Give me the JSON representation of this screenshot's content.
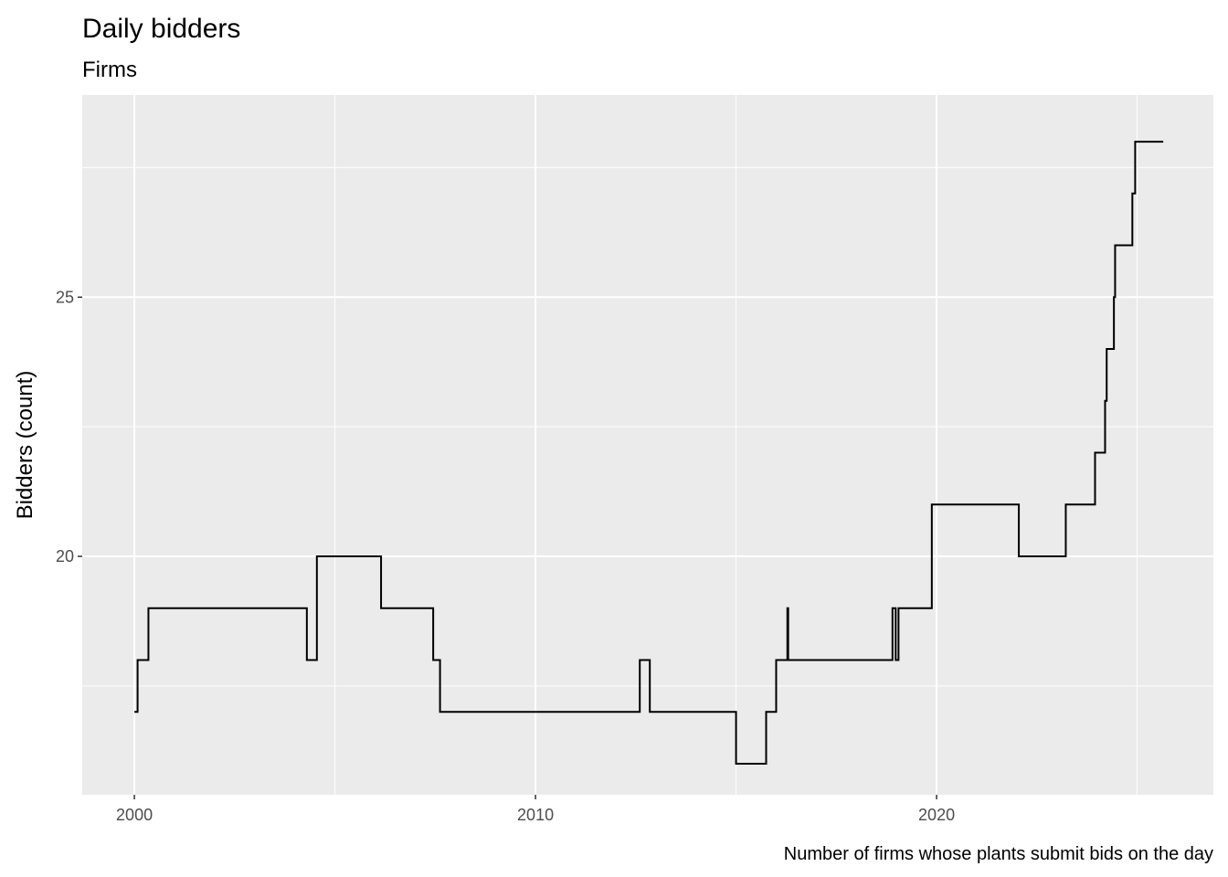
{
  "chart_data": {
    "type": "line",
    "step": true,
    "title": "Daily bidders",
    "subtitle": "Firms",
    "xlabel": "",
    "ylabel": "Bidders (count)",
    "caption": "Number of firms whose plants submit bids on the day",
    "xlim": [
      1998.7,
      2026.9
    ],
    "ylim": [
      15.4,
      28.9
    ],
    "x_ticks": [
      2000,
      2010,
      2020
    ],
    "y_ticks": [
      20,
      25
    ],
    "grid": true,
    "legend": "none",
    "series": [
      {
        "points": [
          [
            2000.0,
            17
          ],
          [
            2000.08,
            18
          ],
          [
            2000.35,
            19
          ],
          [
            2004.3,
            18
          ],
          [
            2004.55,
            20
          ],
          [
            2006.15,
            19
          ],
          [
            2007.45,
            18
          ],
          [
            2007.62,
            17
          ],
          [
            2012.6,
            18
          ],
          [
            2012.85,
            17
          ],
          [
            2015.0,
            16
          ],
          [
            2015.75,
            17
          ],
          [
            2016.0,
            18
          ],
          [
            2016.28,
            19
          ],
          [
            2016.3,
            18
          ],
          [
            2018.9,
            19
          ],
          [
            2018.98,
            18
          ],
          [
            2019.05,
            19
          ],
          [
            2019.88,
            21
          ],
          [
            2022.05,
            20
          ],
          [
            2023.22,
            21
          ],
          [
            2023.95,
            22
          ],
          [
            2024.2,
            23
          ],
          [
            2024.24,
            24
          ],
          [
            2024.42,
            25
          ],
          [
            2024.45,
            26
          ],
          [
            2024.88,
            27
          ],
          [
            2024.95,
            28
          ],
          [
            2025.65,
            28
          ]
        ]
      }
    ]
  },
  "colors": {
    "panel": "#ebebeb",
    "grid_major": "#ffffff",
    "line": "#000000",
    "tick_text": "#4d4d4d"
  }
}
